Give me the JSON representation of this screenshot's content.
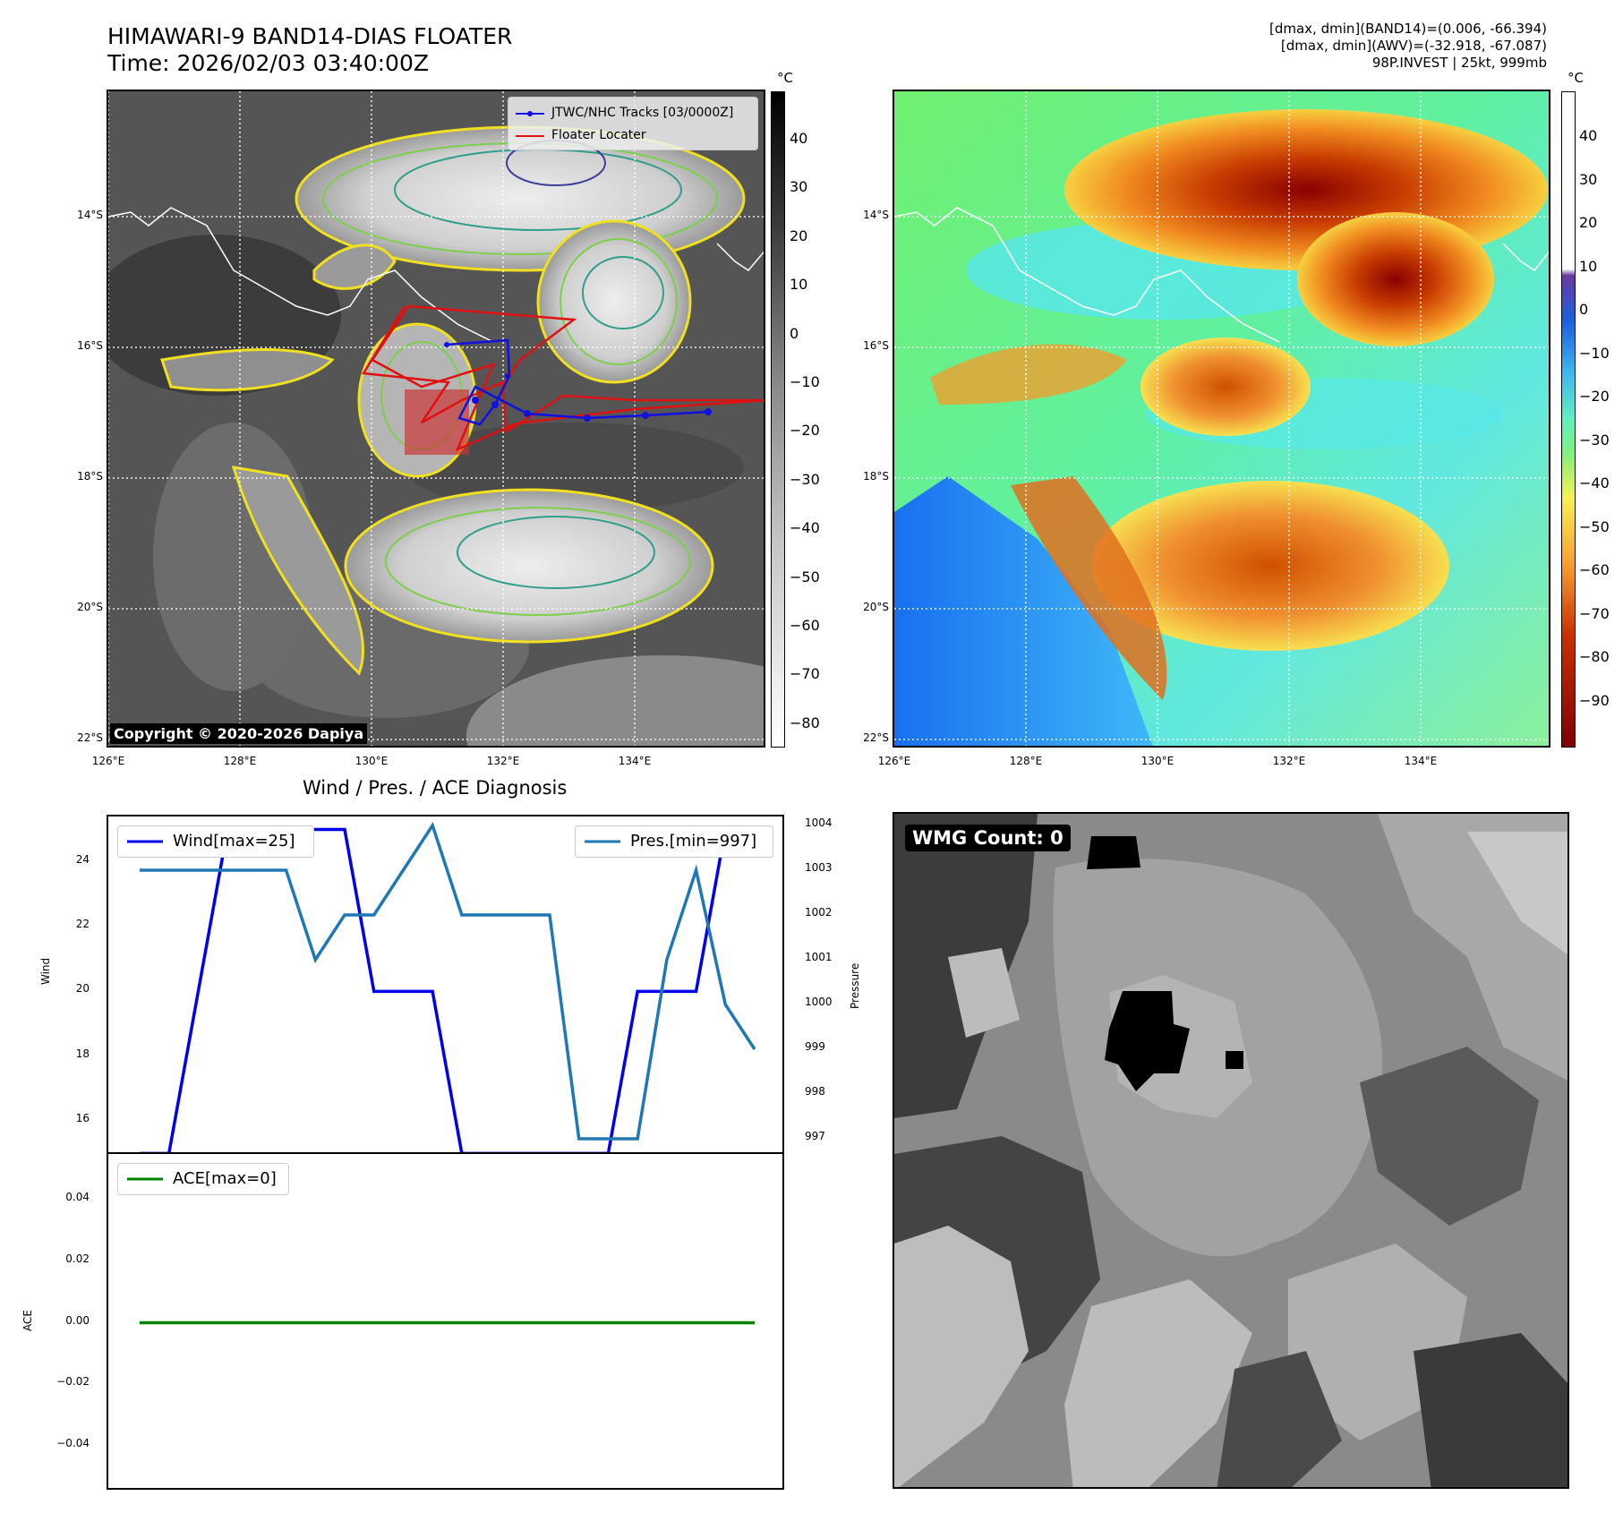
{
  "header": {
    "title_line1": "HIMAWARI-9 BAND14-DIAS FLOATER",
    "title_line2": "Time: 2026/02/03 03:40:00Z",
    "meta_line1": "[dmax, dmin](BAND14)=(0.006, -66.394)",
    "meta_line2": "[dmax, dmin](AWV)=(-32.918, -67.087)",
    "meta_line3": "98P.INVEST | 25kt, 999mb"
  },
  "map_axes": {
    "lon_ticks": [
      "126°E",
      "128°E",
      "130°E",
      "132°E",
      "134°E"
    ],
    "lat_ticks": [
      "14°S",
      "16°S",
      "18°S",
      "20°S",
      "22°S"
    ]
  },
  "ir_map": {
    "legend": [
      "JTWC/NHC Tracks [03/0000Z]",
      "Floater Locater"
    ],
    "copyright": "Copyright © 2020-2026 Dapiya",
    "colorbar_unit": "°C",
    "colorbar_ticks": [
      "40",
      "30",
      "20",
      "10",
      "0",
      "−10",
      "−20",
      "−30",
      "−40",
      "−50",
      "−60",
      "−70",
      "−80"
    ],
    "colors": {
      "jtwc_track": "#1010e0",
      "floater": "#e01010"
    }
  },
  "awv_map": {
    "colorbar_unit": "°C",
    "colorbar_ticks": [
      "40",
      "30",
      "20",
      "10",
      "0",
      "−10",
      "−20",
      "−30",
      "−40",
      "−50",
      "−60",
      "−70",
      "−80",
      "−90"
    ]
  },
  "wmg": {
    "label": "WMG Count: 0"
  },
  "chart_data": [
    {
      "type": "line",
      "title": "Wind / Pres. / ACE Diagnosis",
      "ylabel": "Wind",
      "ylabel_right": "Pressure",
      "ylim": [
        14.9,
        25.4
      ],
      "ylim_right": [
        996.6,
        1004.2
      ],
      "yticks": [
        16,
        18,
        20,
        22,
        24
      ],
      "yticks_right": [
        997,
        998,
        999,
        1000,
        1001,
        1002,
        1003,
        1004
      ],
      "series": [
        {
          "name": "Wind[max=25]",
          "color": "#0000ee",
          "values": [
            15,
            15,
            20,
            25,
            25,
            25,
            25,
            25,
            20,
            20,
            20,
            15,
            15,
            15,
            15,
            15,
            15,
            20,
            20,
            20,
            25,
            25
          ]
        },
        {
          "name": "Pres.[min=997]",
          "color": "#1f77b4",
          "values": [
            1003,
            1003,
            1003,
            1003,
            1003,
            1003,
            1001,
            1002,
            1002,
            1003,
            1004,
            1002,
            1002,
            1002,
            1002,
            997,
            997,
            997,
            1001,
            1003,
            1000,
            999
          ]
        }
      ]
    },
    {
      "type": "line",
      "ylabel": "ACE",
      "ylim": [
        -0.055,
        0.055
      ],
      "yticks": [
        0.04,
        0.02,
        0.0,
        -0.02,
        -0.04
      ],
      "ytick_labels": [
        "0.04",
        "0.02",
        "0.00",
        "−0.02",
        "−0.04"
      ],
      "series": [
        {
          "name": "ACE[max=0]",
          "color": "#008000",
          "values": [
            0,
            0,
            0,
            0,
            0,
            0,
            0,
            0,
            0,
            0,
            0,
            0,
            0,
            0,
            0,
            0,
            0,
            0,
            0,
            0,
            0,
            0
          ]
        }
      ]
    }
  ]
}
